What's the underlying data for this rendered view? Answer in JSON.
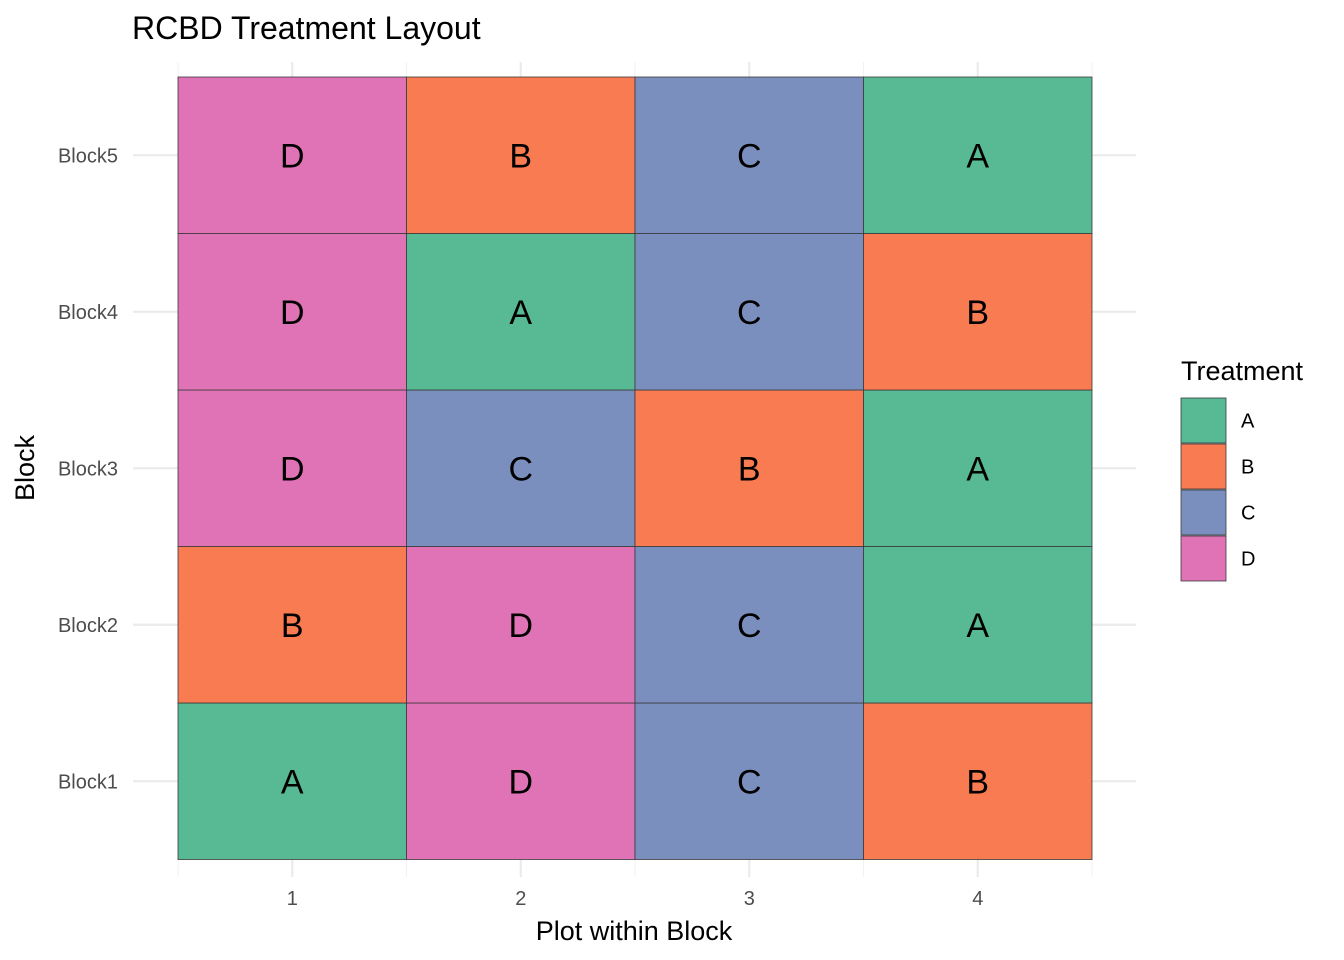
{
  "chart_data": {
    "type": "heatmap",
    "title": "RCBD Treatment Layout",
    "xlabel": "Plot within Block",
    "ylabel": "Block",
    "x": [
      "1",
      "2",
      "3",
      "4"
    ],
    "y": [
      "Block1",
      "Block2",
      "Block3",
      "Block4",
      "Block5"
    ],
    "cells": [
      [
        "A",
        "D",
        "C",
        "B"
      ],
      [
        "B",
        "D",
        "C",
        "A"
      ],
      [
        "D",
        "C",
        "B",
        "A"
      ],
      [
        "D",
        "A",
        "C",
        "B"
      ],
      [
        "D",
        "B",
        "C",
        "A"
      ]
    ],
    "legend": {
      "title": "Treatment",
      "placement": "right",
      "items": [
        {
          "label": "A",
          "color": "#57ba94"
        },
        {
          "label": "B",
          "color": "#f87b52"
        },
        {
          "label": "C",
          "color": "#7b8fbf"
        },
        {
          "label": "D",
          "color": "#e073b6"
        }
      ]
    },
    "grid": true
  }
}
